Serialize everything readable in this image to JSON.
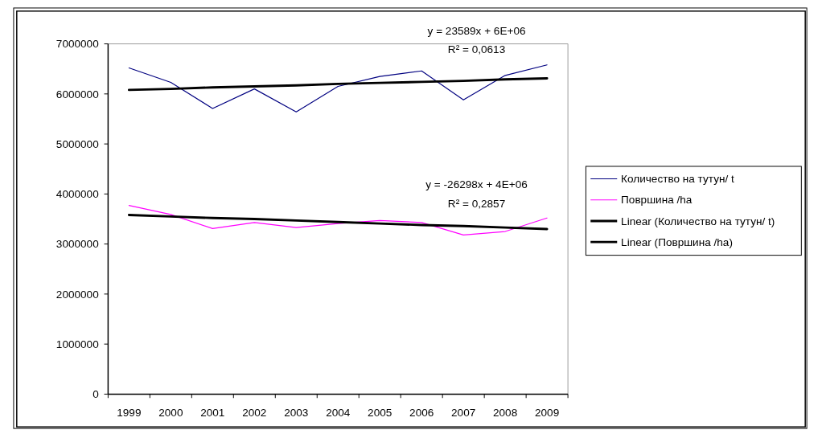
{
  "chart_data": {
    "type": "line",
    "categories": [
      "1999",
      "2000",
      "2001",
      "2002",
      "2003",
      "2004",
      "2005",
      "2006",
      "2007",
      "2008",
      "2009"
    ],
    "series": [
      {
        "name": "Количество на тутун/ t",
        "color": "#000080",
        "values": [
          6520000,
          6230000,
          5710000,
          6100000,
          5640000,
          6150000,
          6350000,
          6460000,
          5880000,
          6370000,
          6580000
        ]
      },
      {
        "name": "Површина /ha",
        "color": "#ff00ff",
        "values": [
          3770000,
          3590000,
          3310000,
          3430000,
          3330000,
          3410000,
          3470000,
          3430000,
          3180000,
          3250000,
          3520000
        ]
      },
      {
        "name": "Linear (Количество на тутун/ t)",
        "color": "#000000",
        "values": [
          6080000,
          6100000,
          6130000,
          6150000,
          6170000,
          6200000,
          6220000,
          6240000,
          6260000,
          6290000,
          6310000
        ]
      },
      {
        "name": "Linear (Површина /ha)",
        "color": "#000000",
        "values": [
          3580000,
          3550000,
          3520000,
          3500000,
          3470000,
          3440000,
          3410000,
          3380000,
          3360000,
          3330000,
          3300000
        ]
      }
    ],
    "ylim": [
      0,
      7000000
    ],
    "yticks": [
      0,
      1000000,
      2000000,
      3000000,
      4000000,
      5000000,
      6000000,
      7000000
    ],
    "annotations": [
      "y = 23589x + 6E+06",
      "R² = 0,0613",
      "y = -26298x + 4E+06",
      "R² = 0,2857"
    ],
    "legend": "right",
    "grid": false,
    "marker": "none",
    "line_style": "solid"
  }
}
